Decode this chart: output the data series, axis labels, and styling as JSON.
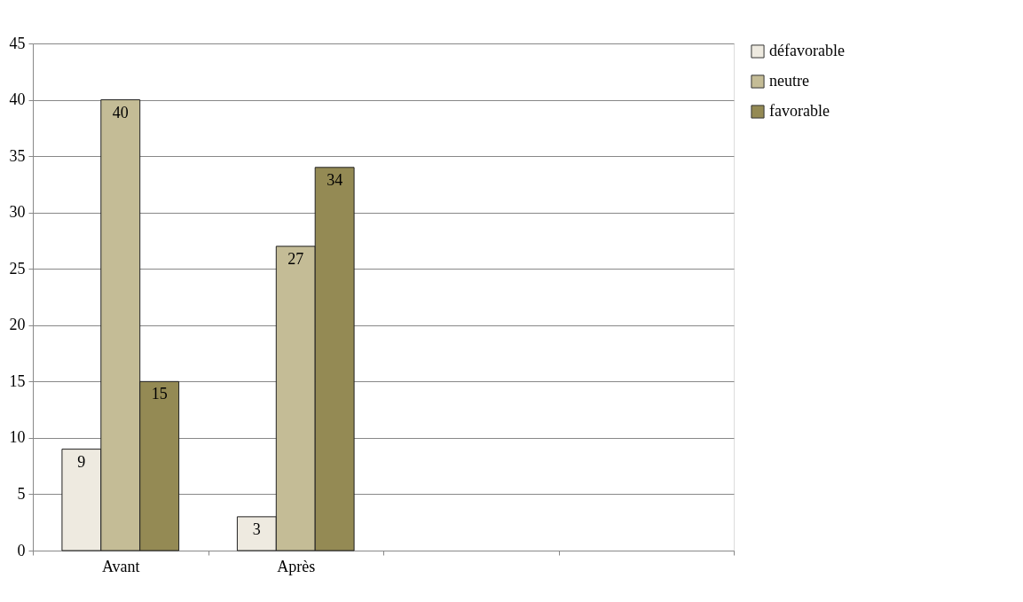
{
  "chart_data": {
    "type": "bar",
    "categories": [
      "Avant",
      "Après",
      null,
      null
    ],
    "series": [
      {
        "name": "défavorable",
        "color": "#eeeae0",
        "values": [
          9,
          3,
          null,
          null
        ]
      },
      {
        "name": "neutre",
        "color": "#c4bc96",
        "values": [
          40,
          27,
          null,
          null
        ]
      },
      {
        "name": "favorable",
        "color": "#948a54",
        "values": [
          15,
          34,
          null,
          null
        ]
      }
    ],
    "ylim": [
      0,
      45
    ],
    "yticks": [
      0,
      5,
      10,
      15,
      20,
      25,
      30,
      35,
      40,
      45
    ],
    "grid": "y",
    "legend": "right",
    "data_labels": true
  }
}
